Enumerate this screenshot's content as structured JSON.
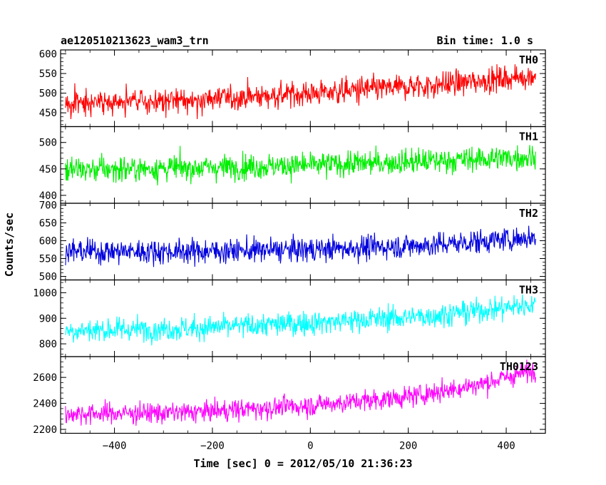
{
  "chart_data": {
    "type": "line",
    "title": "ae120510213623_wam3_trn",
    "subtitle": "Bin time: 1.0 s",
    "xlabel": "Time [sec] 0 = 2012/05/10 21:36:23",
    "ylabel": "Counts/sec",
    "xlim": [
      -510,
      480
    ],
    "x_range_data": [
      -500,
      460
    ],
    "x_ticks": [
      -400,
      -200,
      0,
      200,
      400
    ],
    "x_tick_labels": [
      "−400",
      "−200",
      "0",
      "200",
      "400"
    ],
    "grid": false,
    "panels": [
      {
        "name": "TH0",
        "color": "#ff0000",
        "ylim": [
          415,
          610
        ],
        "y_ticks": [
          450,
          500,
          550,
          600
        ],
        "y_tick_labels": [
          "450",
          "500",
          "550",
          "600"
        ],
        "trend": {
          "x": [
            -500,
            -250,
            0,
            250,
            460
          ],
          "y": [
            472,
            482,
            500,
            520,
            545
          ]
        },
        "noise_amplitude": 38
      },
      {
        "name": "TH1",
        "color": "#00ee00",
        "ylim": [
          385,
          530
        ],
        "y_ticks": [
          400,
          450,
          500
        ],
        "y_tick_labels": [
          "400",
          "450",
          "500"
        ],
        "trend": {
          "x": [
            -500,
            -250,
            0,
            250,
            460
          ],
          "y": [
            448,
            452,
            457,
            465,
            473
          ]
        },
        "noise_amplitude": 28
      },
      {
        "name": "TH2",
        "color": "#0000dd",
        "ylim": [
          490,
          705
        ],
        "y_ticks": [
          500,
          550,
          600,
          650,
          700
        ],
        "y_tick_labels": [
          "500",
          "550",
          "600",
          "650",
          "700"
        ],
        "trend": {
          "x": [
            -500,
            -250,
            0,
            250,
            460
          ],
          "y": [
            570,
            570,
            575,
            588,
            610
          ]
        },
        "noise_amplitude": 40
      },
      {
        "name": "TH3",
        "color": "#00ffff",
        "ylim": [
          750,
          1050
        ],
        "y_ticks": [
          800,
          900,
          1000
        ],
        "y_tick_labels": [
          "800",
          "900",
          "1000"
        ],
        "trend": {
          "x": [
            -500,
            -250,
            0,
            250,
            460
          ],
          "y": [
            852,
            860,
            882,
            910,
            955
          ]
        },
        "noise_amplitude": 55
      },
      {
        "name": "TH0123",
        "color": "#ff00ff",
        "ylim": [
          2170,
          2760
        ],
        "y_ticks": [
          2200,
          2400,
          2600
        ],
        "y_tick_labels": [
          "2200",
          "2400",
          "2600"
        ],
        "trend": {
          "x": [
            -500,
            -250,
            0,
            200,
            350,
            460
          ],
          "y": [
            2320,
            2330,
            2385,
            2450,
            2550,
            2660
          ]
        },
        "noise_amplitude": 95
      }
    ]
  }
}
